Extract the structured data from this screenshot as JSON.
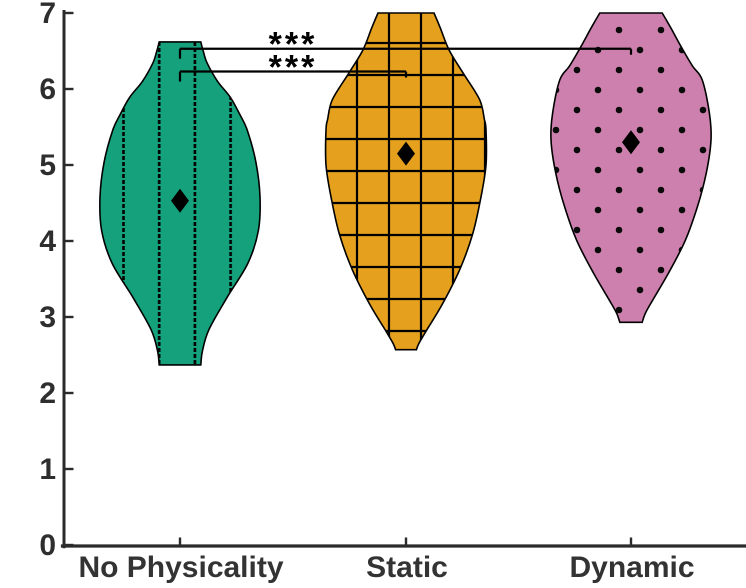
{
  "figure": {
    "background": "#ffffff",
    "axis_color": "#2b2b2b",
    "label_color": "#333333",
    "annotation_color": "#000000",
    "outline_color": "#000000"
  },
  "chart_data": {
    "type": "violin",
    "title": "",
    "xlabel": "",
    "ylabel": "",
    "ylim": [
      0,
      7
    ],
    "yticks": [
      "0",
      "1",
      "2",
      "3",
      "4",
      "5",
      "6",
      "7"
    ],
    "grid": false,
    "legend": "none",
    "categories": [
      "No Physicality",
      "Static",
      "Dynamic"
    ],
    "series": [
      {
        "name": "No Physicality",
        "fill_color": "#16a17d",
        "hatch": "vertical-lines",
        "mean": 4.53,
        "min": 2.37,
        "max": 6.62,
        "profile": [
          [
            6.62,
            0.26
          ],
          [
            6.5,
            0.29
          ],
          [
            6.34,
            0.34
          ],
          [
            6.1,
            0.47
          ],
          [
            5.89,
            0.63
          ],
          [
            5.66,
            0.75
          ],
          [
            5.46,
            0.84
          ],
          [
            5.03,
            0.95
          ],
          [
            4.58,
            1.0
          ],
          [
            4.14,
            0.98
          ],
          [
            3.71,
            0.85
          ],
          [
            3.26,
            0.59
          ],
          [
            2.83,
            0.36
          ],
          [
            2.55,
            0.28
          ],
          [
            2.37,
            0.26
          ]
        ]
      },
      {
        "name": "Static",
        "fill_color": "#e5a11e",
        "hatch": "grid",
        "mean": 5.15,
        "min": 2.57,
        "max": 7.0,
        "profile": [
          [
            7.0,
            0.35
          ],
          [
            6.8,
            0.43
          ],
          [
            6.51,
            0.54
          ],
          [
            6.2,
            0.72
          ],
          [
            5.86,
            0.92
          ],
          [
            5.6,
            0.98
          ],
          [
            5.46,
            1.0
          ],
          [
            5.0,
            1.0
          ],
          [
            4.54,
            0.93
          ],
          [
            4.08,
            0.83
          ],
          [
            3.62,
            0.67
          ],
          [
            3.16,
            0.45
          ],
          [
            2.83,
            0.26
          ],
          [
            2.65,
            0.16
          ],
          [
            2.57,
            0.13
          ]
        ]
      },
      {
        "name": "Dynamic",
        "fill_color": "#cd80ae",
        "hatch": "dots",
        "mean": 5.3,
        "min": 2.93,
        "max": 7.0,
        "profile": [
          [
            7.0,
            0.39
          ],
          [
            6.8,
            0.5
          ],
          [
            6.55,
            0.63
          ],
          [
            6.3,
            0.77
          ],
          [
            6.12,
            0.89
          ],
          [
            5.68,
            0.98
          ],
          [
            5.33,
            1.0
          ],
          [
            4.89,
            0.94
          ],
          [
            4.45,
            0.83
          ],
          [
            4.01,
            0.68
          ],
          [
            3.58,
            0.47
          ],
          [
            3.22,
            0.27
          ],
          [
            3.05,
            0.18
          ],
          [
            2.93,
            0.14
          ]
        ]
      }
    ],
    "significance": [
      {
        "label": "***",
        "group_from": 0,
        "group_to": 2,
        "y_value": 6.53
      },
      {
        "label": "***",
        "group_from": 0,
        "group_to": 1,
        "y_value": 6.23
      }
    ]
  }
}
